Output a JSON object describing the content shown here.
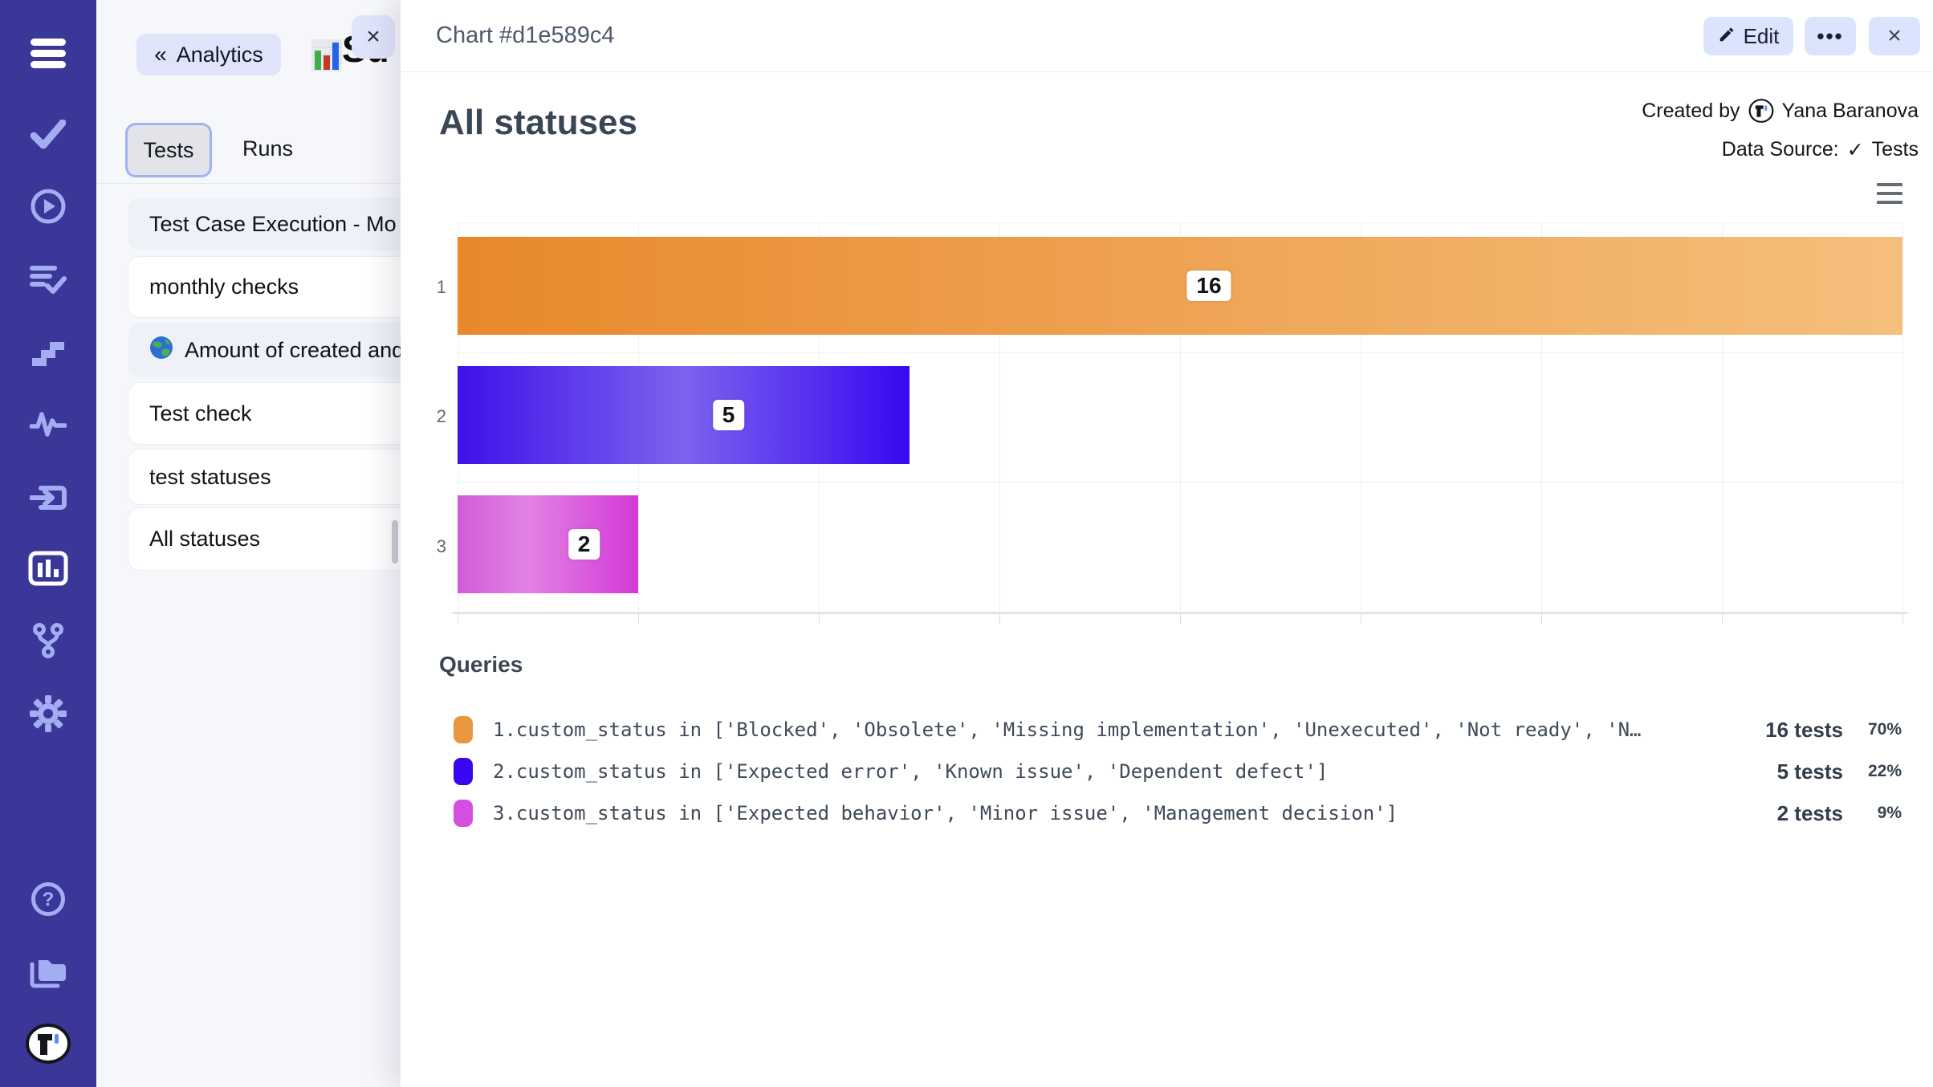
{
  "sidebar": {
    "icons": [
      {
        "name": "hamburger-menu-icon"
      },
      {
        "name": "check-icon"
      },
      {
        "name": "play-circle-icon"
      },
      {
        "name": "checklist-icon"
      },
      {
        "name": "steps-icon"
      },
      {
        "name": "activity-icon"
      },
      {
        "name": "import-icon"
      },
      {
        "name": "bar-chart-icon",
        "active": true
      },
      {
        "name": "branch-icon"
      },
      {
        "name": "gear-icon"
      },
      {
        "name": "help-icon"
      },
      {
        "name": "folders-icon"
      },
      {
        "name": "logo-avatar"
      }
    ]
  },
  "panel": {
    "back_button": "Analytics",
    "partial_title": "Su",
    "close_label": "×",
    "tabs": [
      {
        "label": "Tests"
      },
      {
        "label": "Runs"
      }
    ],
    "items": [
      {
        "label": "Test Case Execution - Mo"
      },
      {
        "label": "monthly checks"
      },
      {
        "icon": "globe-icon",
        "label": "Amount of created and"
      },
      {
        "label": "Test check"
      },
      {
        "label": "test statuses"
      },
      {
        "label": "All statuses"
      }
    ]
  },
  "modal": {
    "header": {
      "title": "Chart #d1e589c4",
      "edit_label": "Edit",
      "more_label": "•••",
      "close_label": "×"
    },
    "created_by": {
      "label": "Created by",
      "name": "Yana Baranova"
    },
    "data_source": {
      "label": "Data Source:",
      "check": "✓",
      "value": "Tests"
    }
  },
  "chart_data": {
    "type": "bar",
    "orientation": "horizontal",
    "title": "All statuses",
    "categories": [
      "1",
      "2",
      "3"
    ],
    "values": [
      16,
      5,
      2
    ],
    "xlim": [
      0,
      16
    ],
    "tick_interval": 2,
    "grid": true,
    "legend_position": "bottom",
    "bar_gradients": [
      [
        "#e8882b 0%",
        "#f5bf7c 100%"
      ],
      [
        "#3f10e9 0%",
        "#7c63ee 50%",
        "#3807f0 100%"
      ],
      [
        "#cf5cd9 0%",
        "#e282e5 38%",
        "#d23ad6 100%"
      ]
    ]
  },
  "queries": {
    "heading": "Queries",
    "rows": [
      {
        "color": "#e8973f",
        "query": "1.custom_status in ['Blocked', 'Obsolete', 'Missing implementation', 'Unexecuted', 'Not ready', 'N…",
        "count": "16 tests",
        "percent": "70%"
      },
      {
        "color": "#3807f0",
        "query": "2.custom_status in ['Expected error', 'Known issue', 'Dependent defect']",
        "count": "5 tests",
        "percent": "22%"
      },
      {
        "color": "#d44fe0",
        "query": "3.custom_status in ['Expected behavior', 'Minor issue', 'Management decision']",
        "count": "2 tests",
        "percent": "9%"
      }
    ]
  }
}
